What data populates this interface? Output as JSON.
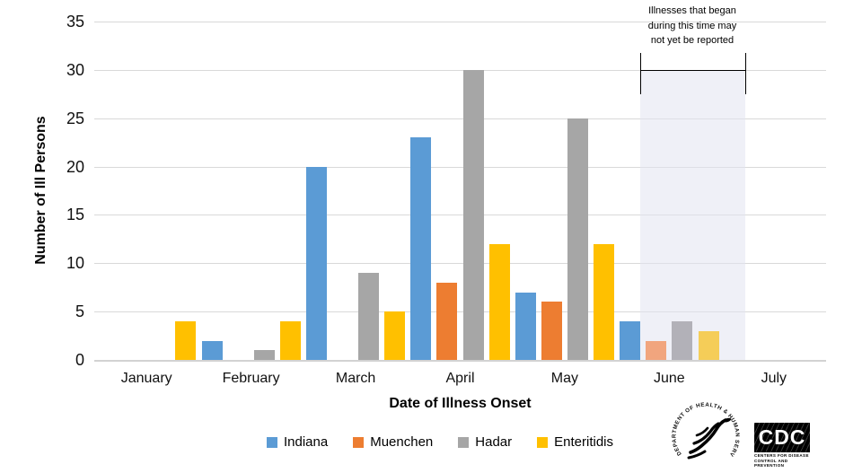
{
  "chart_data": {
    "type": "bar",
    "title": "",
    "xlabel": "Date of Illness Onset",
    "ylabel": "Number of Ill Persons",
    "ylim": [
      0,
      35
    ],
    "yticks": [
      0,
      5,
      10,
      15,
      20,
      25,
      30,
      35
    ],
    "grid": true,
    "legend_position": "bottom",
    "categories": [
      "January",
      "February",
      "March",
      "April",
      "May",
      "June",
      "July"
    ],
    "series": [
      {
        "name": "Indiana",
        "color": "#5B9BD5",
        "faded_color": "#5B9BD5",
        "values": [
          0,
          2,
          20,
          23,
          7,
          4,
          0
        ]
      },
      {
        "name": "Muenchen",
        "color": "#ED7D31",
        "faded_color": "#F1A57E",
        "values": [
          0,
          0,
          0,
          8,
          6,
          2,
          0
        ]
      },
      {
        "name": "Hadar",
        "color": "#A6A6A6",
        "faded_color": "#B2B1B8",
        "values": [
          0,
          1,
          9,
          30,
          25,
          4,
          0
        ]
      },
      {
        "name": "Enteritidis",
        "color": "#FFC000",
        "faded_color": "#F5CD58",
        "values": [
          4,
          4,
          5,
          12,
          12,
          3,
          0
        ]
      }
    ],
    "faded_category": "June",
    "shaded_region": {
      "fill": "#ECEEF5",
      "label_lines": [
        "Illnesses that began",
        "during this time may",
        "not yet be reported"
      ]
    }
  },
  "footer": {
    "hhs_seal_text": "DEPARTMENT OF HEALTH & HUMAN SERVICES USA",
    "cdc_logo": {
      "acronym": "CDC",
      "caption_line1": "Centers for Disease",
      "caption_line2": "Control and Prevention"
    }
  }
}
